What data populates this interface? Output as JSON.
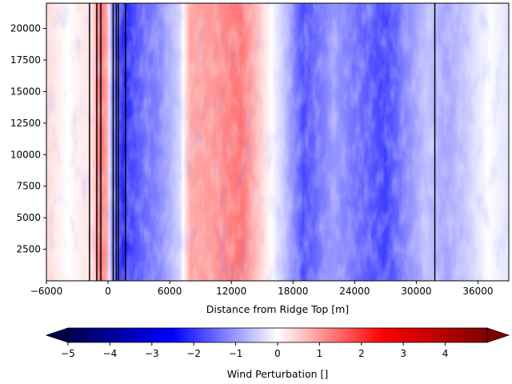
{
  "chart_data": {
    "type": "heatmap",
    "title": "",
    "xlabel": "Distance from Ridge Top [m]",
    "ylabel": "",
    "xlim": [
      -6000,
      39000
    ],
    "ylim": [
      0,
      22000
    ],
    "x_ticks": [
      -6000,
      0,
      6000,
      12000,
      18000,
      24000,
      30000,
      36000
    ],
    "x_tick_labels": [
      "−6000",
      "0",
      "6000",
      "12000",
      "18000",
      "24000",
      "30000",
      "36000"
    ],
    "y_ticks": [
      2500,
      5000,
      7500,
      10000,
      12500,
      15000,
      17500,
      20000
    ],
    "y_tick_labels": [
      "2500",
      "5000",
      "7500",
      "10000",
      "12500",
      "15000",
      "17500",
      "20000"
    ],
    "colormap": "seismic",
    "colormap_colors": [
      "#00004c",
      "#0000ff",
      "#ffffff",
      "#ff0000",
      "#800000"
    ],
    "vertical_lines_x": [
      -1800,
      -1100,
      -700,
      500,
      800,
      1000,
      1700,
      31800
    ],
    "mean_profile": [
      {
        "x": -6000,
        "value": 0.4
      },
      {
        "x": -4000,
        "value": 0.0
      },
      {
        "x": -2500,
        "value": 0.2
      },
      {
        "x": -1500,
        "value": 0.3
      },
      {
        "x": -800,
        "value": 1.5
      },
      {
        "x": 0,
        "value": 0.8
      },
      {
        "x": 300,
        "value": -1.0
      },
      {
        "x": 1500,
        "value": -2.2
      },
      {
        "x": 3000,
        "value": -1.6
      },
      {
        "x": 5000,
        "value": -1.2
      },
      {
        "x": 7000,
        "value": -0.4
      },
      {
        "x": 8000,
        "value": 0.9
      },
      {
        "x": 10000,
        "value": 1.0
      },
      {
        "x": 13000,
        "value": 1.4
      },
      {
        "x": 15000,
        "value": 0.4
      },
      {
        "x": 17000,
        "value": -0.5
      },
      {
        "x": 19000,
        "value": -1.8
      },
      {
        "x": 22000,
        "value": -1.0
      },
      {
        "x": 24000,
        "value": -1.4
      },
      {
        "x": 27000,
        "value": -1.9
      },
      {
        "x": 29000,
        "value": -1.2
      },
      {
        "x": 31000,
        "value": -0.6
      },
      {
        "x": 33000,
        "value": -0.9
      },
      {
        "x": 35000,
        "value": -0.5
      },
      {
        "x": 37000,
        "value": 0.0
      },
      {
        "x": 39000,
        "value": -0.3
      }
    ],
    "colorbar": {
      "label": "Wind Perturbation []",
      "range": [
        -5,
        5
      ],
      "extend": "both",
      "ticks": [
        -5,
        -4,
        -3,
        -2,
        -1,
        0,
        1,
        2,
        3,
        4
      ],
      "tick_labels": [
        "−5",
        "−4",
        "−3",
        "−2",
        "−1",
        "0",
        "1",
        "2",
        "3",
        "4"
      ]
    }
  }
}
